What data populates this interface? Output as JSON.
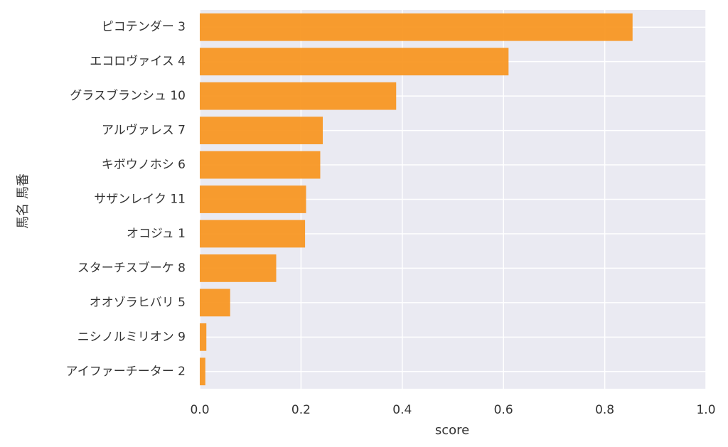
{
  "chart_data": {
    "type": "bar",
    "orientation": "horizontal",
    "categories": [
      "ピコテンダー 3",
      "エコロヴァイス 4",
      "グラスブランシュ 10",
      "アルヴァレス 7",
      "キボウノホシ 6",
      "サザンレイク 11",
      "オコジュ 1",
      "スターチスブーケ 8",
      "オオゾラヒバリ 5",
      "ニシノルミリオン 9",
      "アイファーチーター 2"
    ],
    "values": [
      0.855,
      0.61,
      0.388,
      0.243,
      0.238,
      0.21,
      0.208,
      0.151,
      0.06,
      0.013,
      0.011
    ],
    "xlabel": "score",
    "ylabel": "馬名 馬番",
    "xlim": [
      0.0,
      1.0
    ],
    "xticks": [
      "0.0",
      "0.2",
      "0.4",
      "0.6",
      "0.8",
      "1.0"
    ],
    "grid": true,
    "colors": {
      "bar": "#f7941d",
      "background": "#eaeaf2",
      "grid": "#ffffff",
      "text": "#333333"
    }
  }
}
